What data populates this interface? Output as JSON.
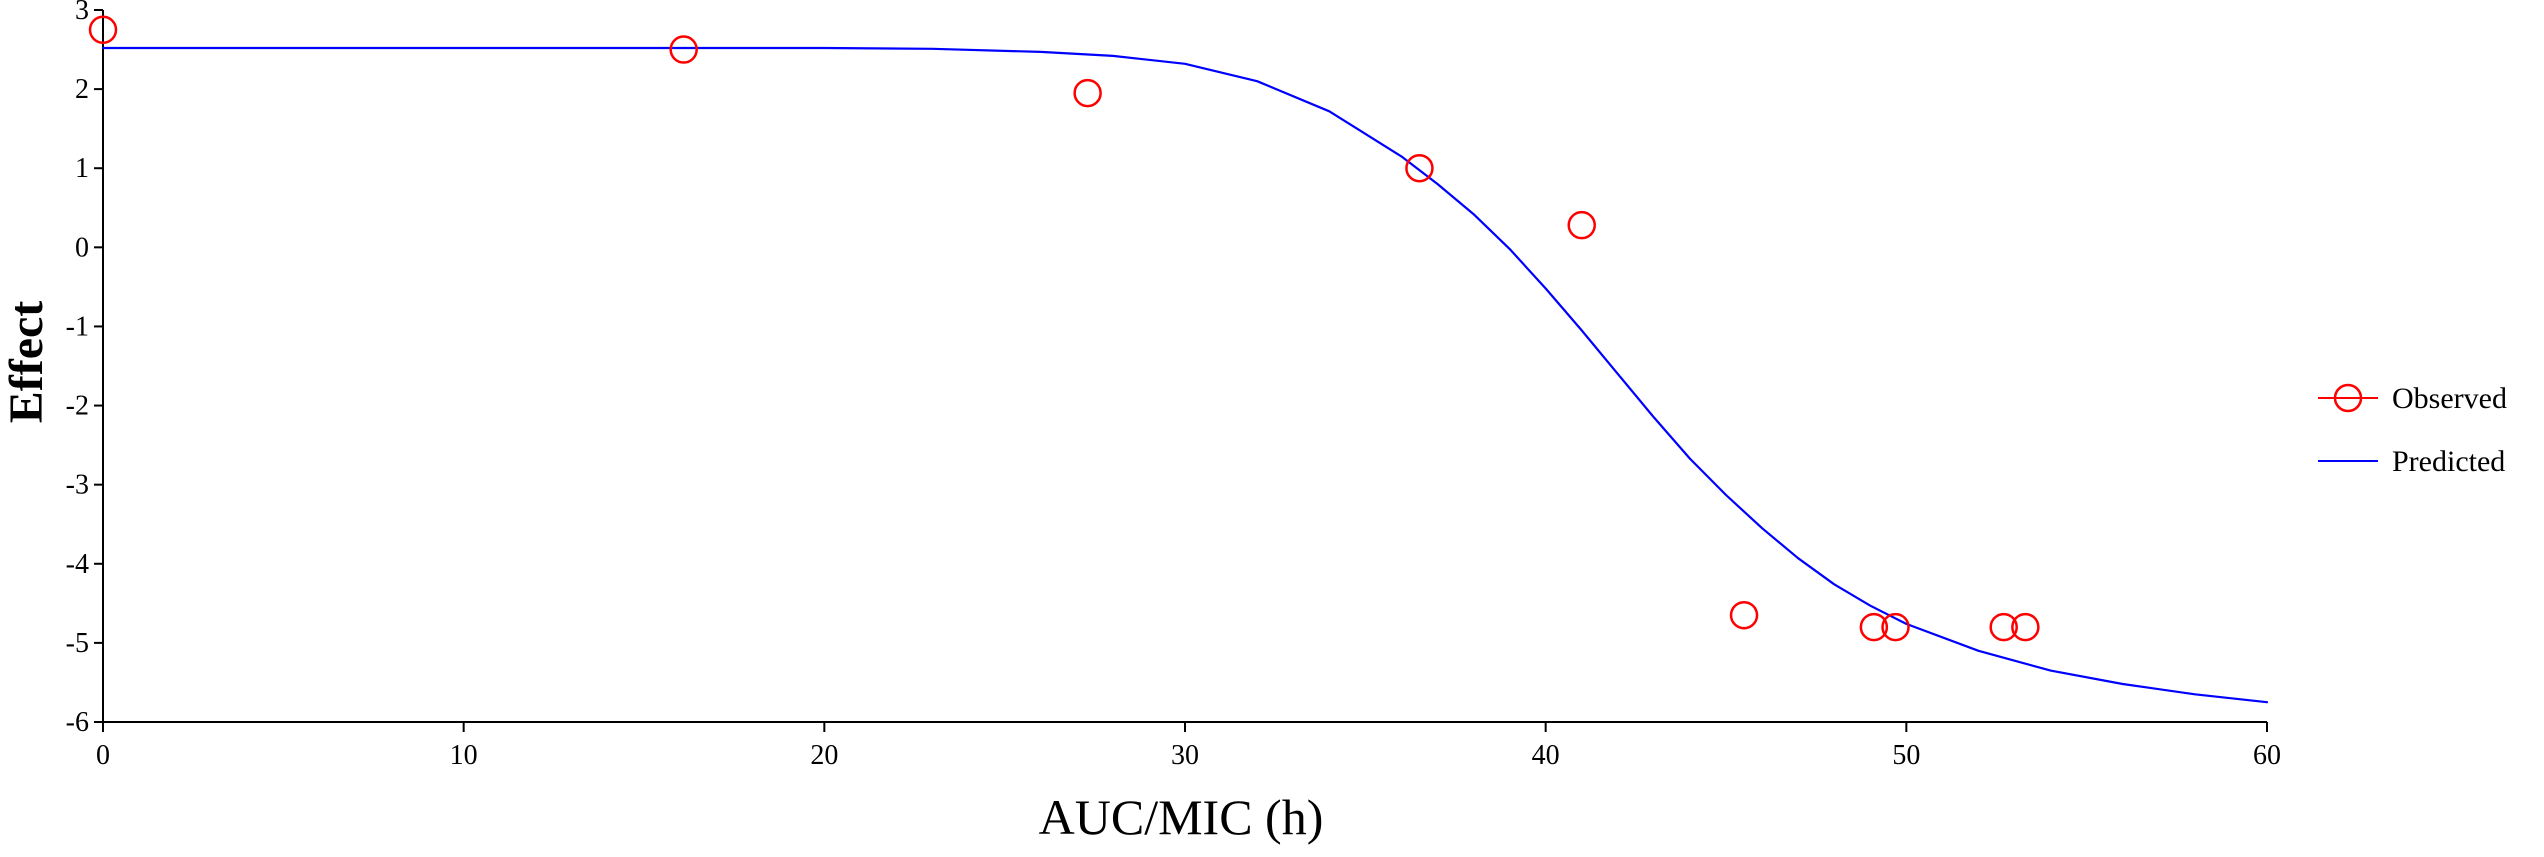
{
  "chart_data": {
    "type": "scatter",
    "title": "",
    "xlabel": "AUC/MIC (h)",
    "ylabel": "Effect",
    "xlim": [
      0,
      60
    ],
    "ylim": [
      -6,
      3
    ],
    "xticks": [
      0,
      10,
      20,
      30,
      40,
      50,
      60
    ],
    "yticks": [
      3,
      2,
      1,
      0,
      -1,
      -2,
      -3,
      -4,
      -5,
      -6
    ],
    "grid": false,
    "legend_position": "right",
    "series": [
      {
        "name": "Observed",
        "kind": "scatter",
        "marker": "open-circle",
        "color": "#ff0000",
        "points": [
          [
            0.0,
            2.75
          ],
          [
            16.1,
            2.5
          ],
          [
            27.3,
            1.95
          ],
          [
            36.5,
            1.0
          ],
          [
            41.0,
            0.28
          ],
          [
            45.5,
            -4.65
          ],
          [
            49.1,
            -4.8
          ],
          [
            49.7,
            -4.8
          ],
          [
            52.7,
            -4.8
          ],
          [
            53.3,
            -4.8
          ]
        ]
      },
      {
        "name": "Predicted",
        "kind": "line",
        "color": "#0000ff",
        "points": [
          [
            0,
            2.52
          ],
          [
            10,
            2.52
          ],
          [
            20,
            2.52
          ],
          [
            23,
            2.51
          ],
          [
            26,
            2.47
          ],
          [
            28,
            2.42
          ],
          [
            30,
            2.32
          ],
          [
            32,
            2.1
          ],
          [
            34,
            1.72
          ],
          [
            36,
            1.15
          ],
          [
            37,
            0.8
          ],
          [
            38,
            0.42
          ],
          [
            39,
            -0.02
          ],
          [
            40,
            -0.52
          ],
          [
            41,
            -1.05
          ],
          [
            42,
            -1.6
          ],
          [
            43,
            -2.15
          ],
          [
            44,
            -2.67
          ],
          [
            45,
            -3.13
          ],
          [
            46,
            -3.55
          ],
          [
            47,
            -3.93
          ],
          [
            48,
            -4.26
          ],
          [
            49,
            -4.53
          ],
          [
            50,
            -4.76
          ],
          [
            52,
            -5.1
          ],
          [
            54,
            -5.35
          ],
          [
            56,
            -5.52
          ],
          [
            58,
            -5.65
          ],
          [
            60,
            -5.75
          ]
        ]
      }
    ]
  }
}
